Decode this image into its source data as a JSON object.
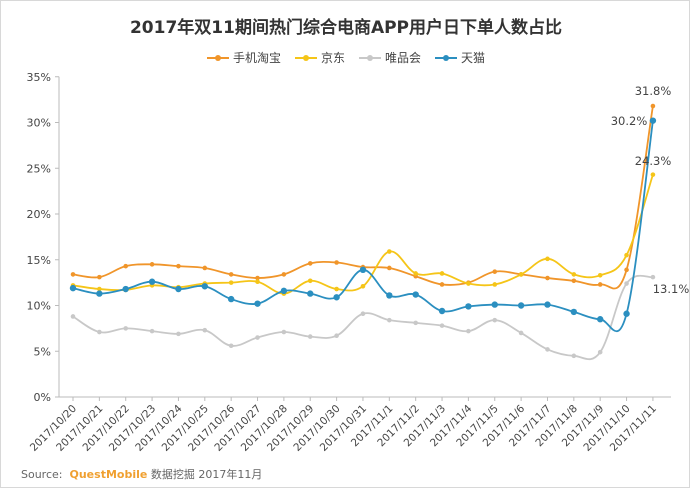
{
  "chart_data": {
    "type": "line",
    "title": "2017年双11期间热门综合电商APP用户日下单人数占比",
    "categories": [
      "2017/10/20",
      "2017/10/21",
      "2017/10/22",
      "2017/10/23",
      "2017/10/24",
      "2017/10/25",
      "2017/10/26",
      "2017/10/27",
      "2017/10/28",
      "2017/10/29",
      "2017/10/30",
      "2017/10/31",
      "2017/11/1",
      "2017/11/2",
      "2017/11/3",
      "2017/11/4",
      "2017/11/5",
      "2017/11/6",
      "2017/11/7",
      "2017/11/8",
      "2017/11/9",
      "2017/11/10",
      "2017/11/11"
    ],
    "yticks": [
      "0%",
      "5%",
      "10%",
      "15%",
      "20%",
      "25%",
      "30%",
      "35%"
    ],
    "ylim": [
      0,
      35
    ],
    "legend_position": "top",
    "series": [
      {
        "name": "手机淘宝",
        "color": "#f0952a",
        "values": [
          13.4,
          13.1,
          14.3,
          14.5,
          14.3,
          14.1,
          13.4,
          13.0,
          13.4,
          14.6,
          14.7,
          14.2,
          14.1,
          13.2,
          12.3,
          12.5,
          13.7,
          13.4,
          13.0,
          12.7,
          12.3,
          13.9,
          31.8
        ]
      },
      {
        "name": "京东",
        "color": "#f5c518",
        "values": [
          12.2,
          11.8,
          11.7,
          12.2,
          12.0,
          12.4,
          12.5,
          12.6,
          11.3,
          12.7,
          11.8,
          12.1,
          15.9,
          13.5,
          13.5,
          12.4,
          12.3,
          13.4,
          15.1,
          13.4,
          13.3,
          15.5,
          24.3
        ]
      },
      {
        "name": "唯品会",
        "color": "#c8c8c8",
        "values": [
          8.8,
          7.1,
          7.5,
          7.2,
          6.9,
          7.3,
          5.6,
          6.5,
          7.1,
          6.6,
          6.7,
          9.1,
          8.4,
          8.1,
          7.8,
          7.2,
          8.4,
          7.0,
          5.2,
          4.5,
          4.9,
          12.4,
          13.1
        ]
      },
      {
        "name": "天猫",
        "color": "#2b8fc0",
        "values": [
          11.9,
          11.3,
          11.8,
          12.6,
          11.8,
          12.1,
          10.7,
          10.2,
          11.6,
          11.3,
          10.9,
          13.9,
          11.1,
          11.2,
          9.4,
          9.9,
          10.1,
          10.0,
          10.1,
          9.3,
          8.5,
          9.1,
          30.2
        ]
      }
    ],
    "annotations": [
      "31.8%",
      "30.2%",
      "24.3%",
      "13.1%"
    ]
  },
  "source": {
    "label": "Source:",
    "brand": "QuestMobile",
    "text": "数据挖掘 2017年11月"
  }
}
